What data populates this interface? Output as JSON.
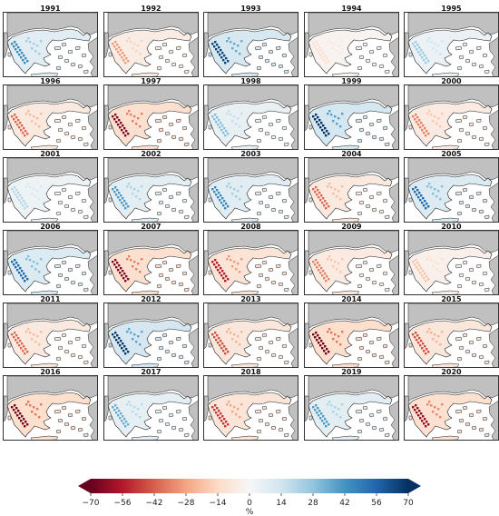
{
  "panels": [
    {
      "year": "1991",
      "anomaly": 45
    },
    {
      "year": "1992",
      "anomaly": -30
    },
    {
      "year": "1993",
      "anomaly": 65
    },
    {
      "year": "1994",
      "anomaly": -12
    },
    {
      "year": "1995",
      "anomaly": 25
    },
    {
      "year": "1996",
      "anomaly": -40
    },
    {
      "year": "1997",
      "anomaly": -65
    },
    {
      "year": "1998",
      "anomaly": 30
    },
    {
      "year": "1999",
      "anomaly": 70
    },
    {
      "year": "2000",
      "anomaly": -35
    },
    {
      "year": "2001",
      "anomaly": 20
    },
    {
      "year": "2002",
      "anomaly": 40
    },
    {
      "year": "2003",
      "anomaly": 45
    },
    {
      "year": "2004",
      "anomaly": -40
    },
    {
      "year": "2005",
      "anomaly": 55
    },
    {
      "year": "2006",
      "anomaly": 55
    },
    {
      "year": "2007",
      "anomaly": -65
    },
    {
      "year": "2008",
      "anomaly": -55
    },
    {
      "year": "2009",
      "anomaly": -35
    },
    {
      "year": "2010",
      "anomaly": -20
    },
    {
      "year": "2011",
      "anomaly": -40
    },
    {
      "year": "2012",
      "anomaly": 68
    },
    {
      "year": "2013",
      "anomaly": -45
    },
    {
      "year": "2014",
      "anomaly": -68
    },
    {
      "year": "2015",
      "anomaly": -45
    },
    {
      "year": "2016",
      "anomaly": -68
    },
    {
      "year": "2017",
      "anomaly": 35
    },
    {
      "year": "2018",
      "anomaly": -50
    },
    {
      "year": "2019",
      "anomaly": 40
    },
    {
      "year": "2020",
      "anomaly": -62
    }
  ],
  "colorbar": {
    "ticks": [
      "−70",
      "−56",
      "−42",
      "−28",
      "−14",
      "0",
      "14",
      "28",
      "42",
      "56",
      "70"
    ],
    "unit": "%",
    "range": [
      -70,
      70
    ],
    "colormap": "RdBu",
    "stops": [
      "#67001f",
      "#b2182b",
      "#d6604d",
      "#f4a582",
      "#fddbc7",
      "#f7f7f7",
      "#d1e5f0",
      "#92c5de",
      "#4393c3",
      "#2166ac",
      "#053061"
    ],
    "extend": "both"
  },
  "colors": {
    "land": "#c0c0c0",
    "sea": "#ffffff",
    "coast": "#222222"
  }
}
